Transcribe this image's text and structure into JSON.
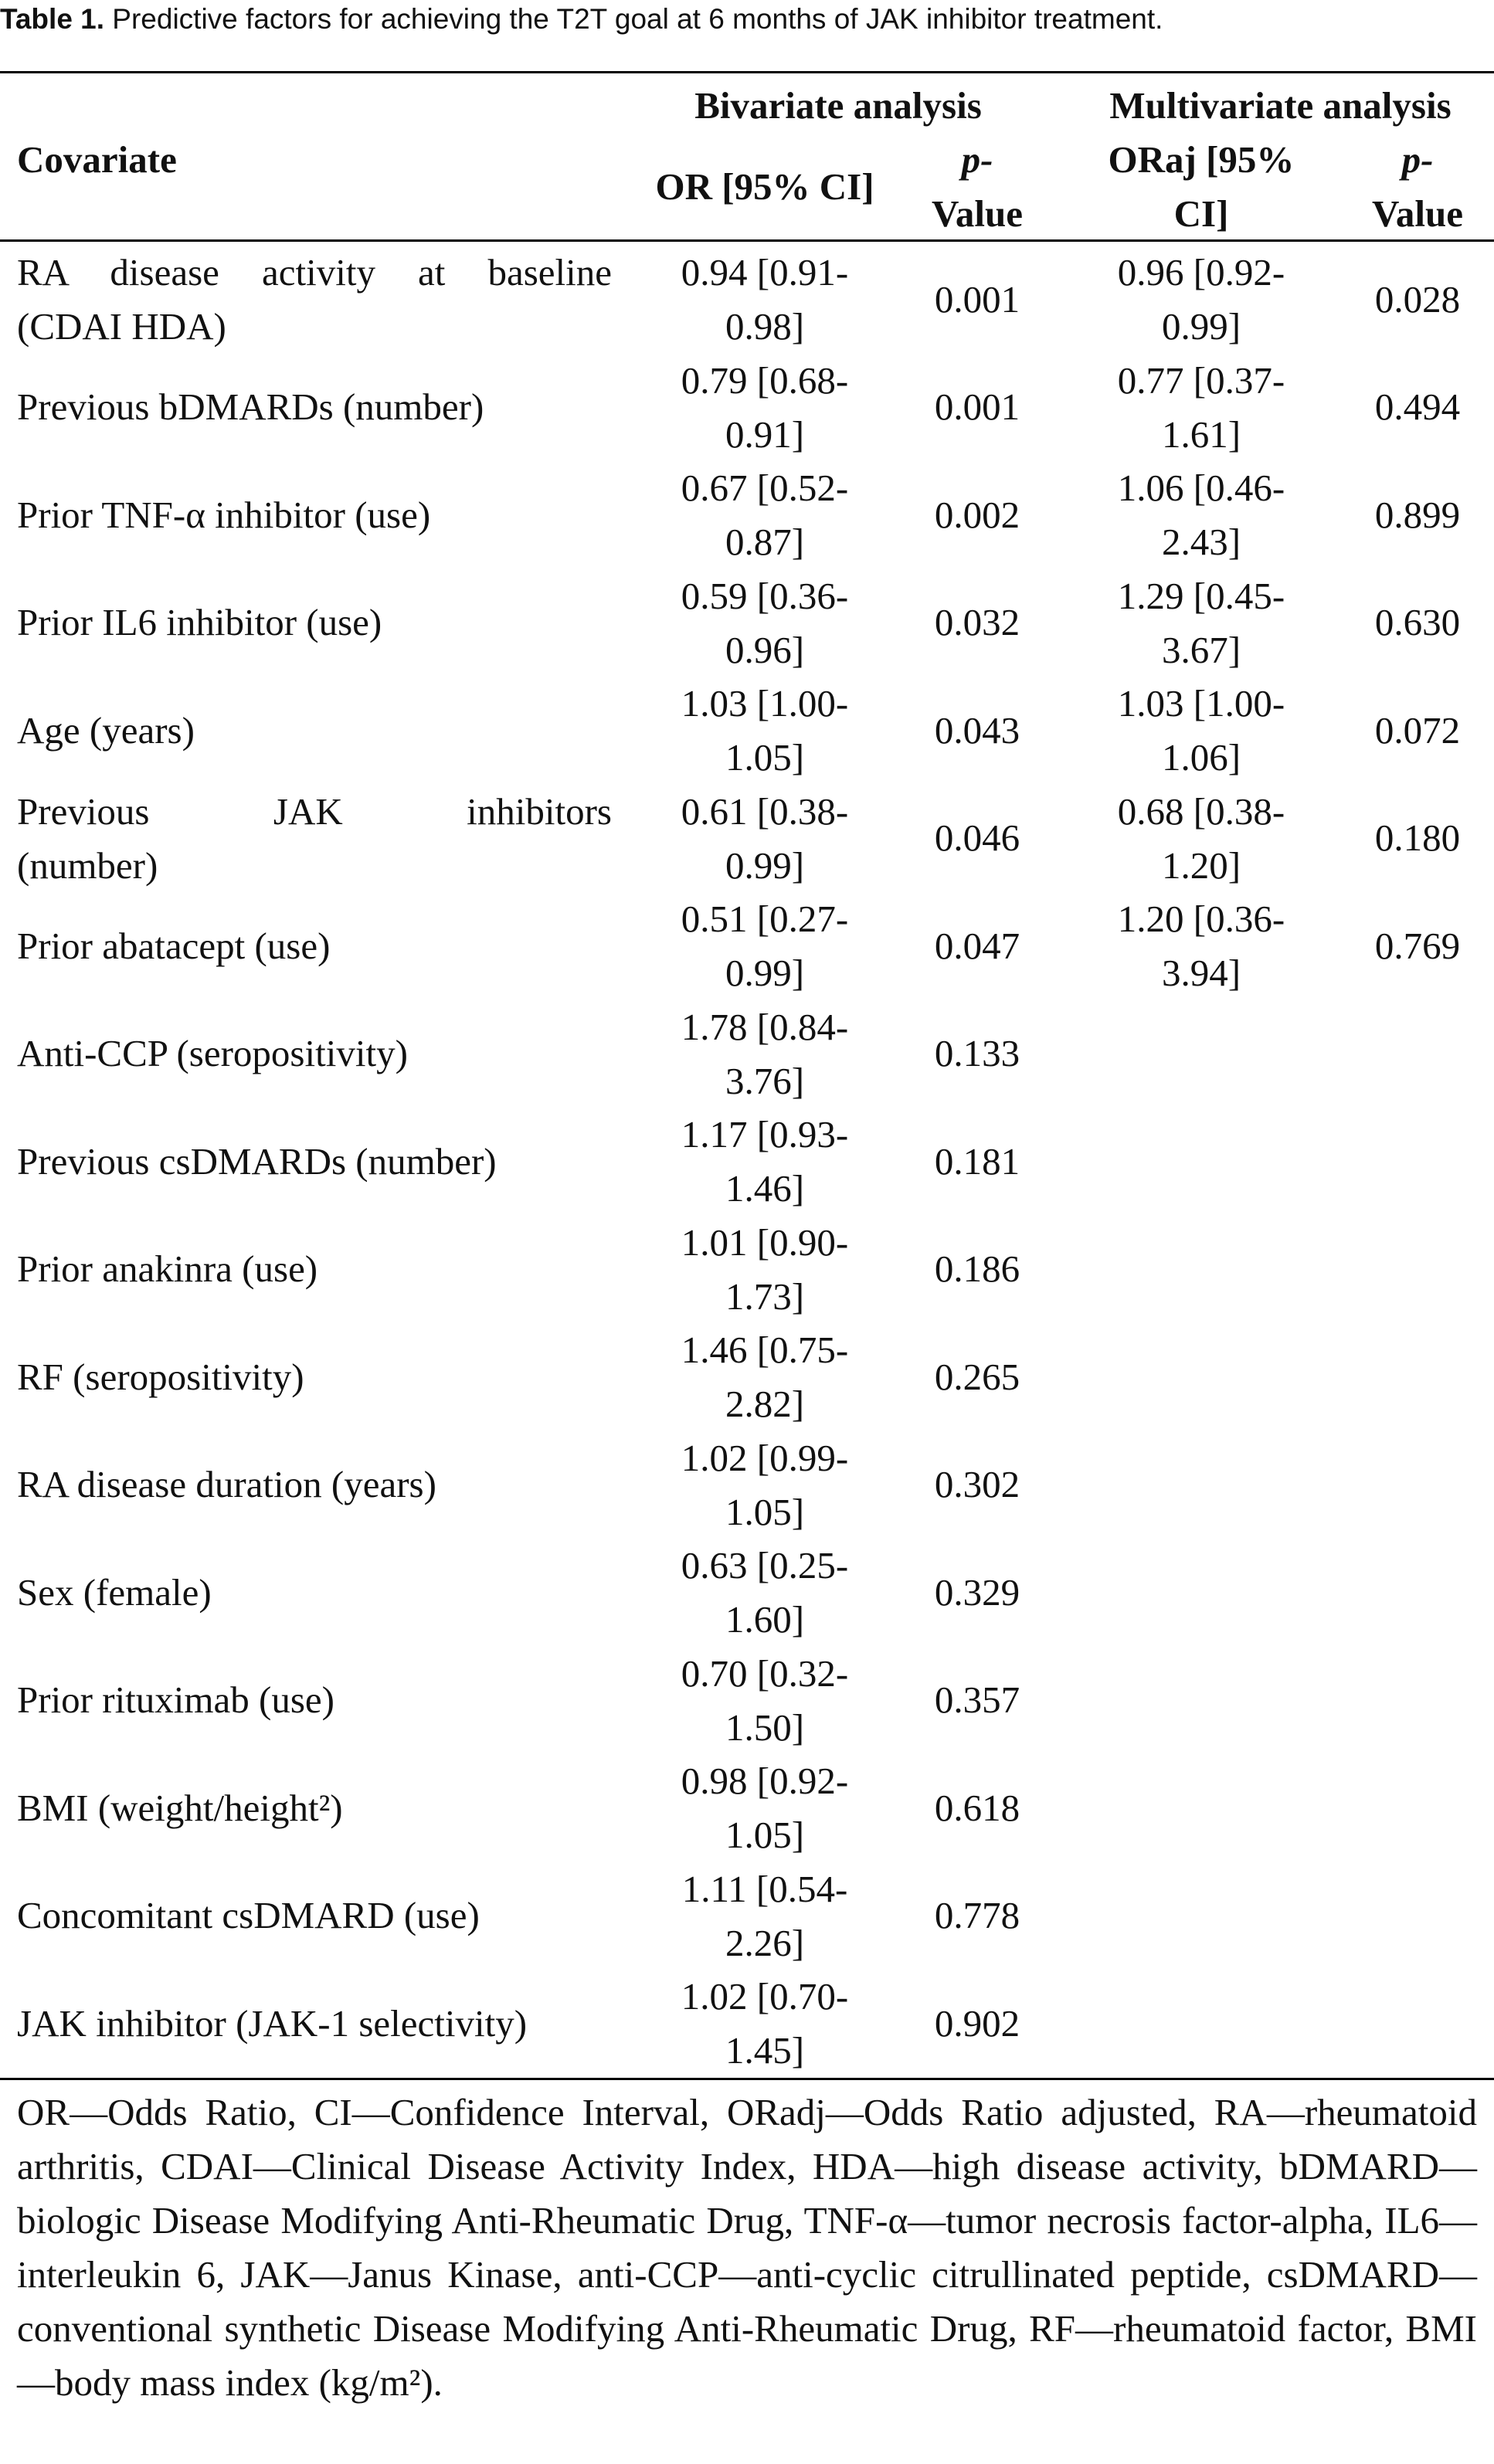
{
  "caption": {
    "label": "Table 1.",
    "text": " Predictive factors for achieving the T2T goal at 6 months of JAK inhibitor treatment."
  },
  "header": {
    "covariate": "Covariate",
    "bivariate": "Bivariate analysis",
    "multivariate": "Multivariate analysis",
    "or_ci": "OR [95% CI]",
    "p_value_1_line1": "p-",
    "p_value_1_line2": "Value",
    "oraj_line1": "ORaj [95%",
    "oraj_line2": "CI]",
    "p_value_2_line1": "p-",
    "p_value_2_line2": "Value"
  },
  "rows": [
    {
      "cov1": "RA disease activity at baseline",
      "cov2": "(CDAI HDA)",
      "or1": "0.94 [0.91-",
      "or2": "0.98]",
      "p1": "0.001",
      "ora1": "0.96 [0.92-",
      "ora2": "0.99]",
      "p2": "0.028"
    },
    {
      "cov1": "Previous bDMARDs (number)",
      "or1": "0.79 [0.68-",
      "or2": "0.91]",
      "p1": "0.001",
      "ora1": "0.77 [0.37-",
      "ora2": "1.61]",
      "p2": "0.494"
    },
    {
      "cov1": "Prior TNF-α inhibitor (use)",
      "or1": "0.67 [0.52-",
      "or2": "0.87]",
      "p1": "0.002",
      "ora1": "1.06 [0.46-",
      "ora2": "2.43]",
      "p2": "0.899"
    },
    {
      "cov1": "Prior IL6 inhibitor (use)",
      "or1": "0.59 [0.36-",
      "or2": "0.96]",
      "p1": "0.032",
      "ora1": "1.29 [0.45-",
      "ora2": "3.67]",
      "p2": "0.630"
    },
    {
      "cov1": "Age (years)",
      "or1": "1.03 [1.00-",
      "or2": "1.05]",
      "p1": "0.043",
      "ora1": "1.03 [1.00-",
      "ora2": "1.06]",
      "p2": "0.072"
    },
    {
      "cov1": "Previous JAK inhibitors",
      "cov2": "(number)",
      "or1": "0.61 [0.38-",
      "or2": "0.99]",
      "p1": "0.046",
      "ora1": "0.68 [0.38-",
      "ora2": "1.20]",
      "p2": "0.180"
    },
    {
      "cov1": "Prior abatacept (use)",
      "or1": "0.51 [0.27-",
      "or2": "0.99]",
      "p1": "0.047",
      "ora1": "1.20 [0.36-",
      "ora2": "3.94]",
      "p2": "0.769"
    },
    {
      "cov1": "Anti-CCP (seropositivity)",
      "or1": "1.78 [0.84-",
      "or2": "3.76]",
      "p1": "0.133"
    },
    {
      "cov1": "Previous csDMARDs (number)",
      "or1": "1.17 [0.93-",
      "or2": "1.46]",
      "p1": "0.181"
    },
    {
      "cov1": "Prior anakinra (use)",
      "or1": "1.01 [0.90-",
      "or2": "1.73]",
      "p1": "0.186"
    },
    {
      "cov1": "RF (seropositivity)",
      "or1": "1.46 [0.75-",
      "or2": "2.82]",
      "p1": "0.265"
    },
    {
      "cov1": "RA disease duration (years)",
      "or1": "1.02 [0.99-",
      "or2": "1.05]",
      "p1": "0.302"
    },
    {
      "cov1": "Sex (female)",
      "or1": "0.63 [0.25-",
      "or2": "1.60]",
      "p1": "0.329"
    },
    {
      "cov1": "Prior rituximab (use)",
      "or1": "0.70 [0.32-",
      "or2": "1.50]",
      "p1": "0.357"
    },
    {
      "cov1": "BMI (weight/height²)",
      "or1": "0.98 [0.92-",
      "or2": "1.05]",
      "p1": "0.618"
    },
    {
      "cov1": "Concomitant csDMARD (use)",
      "or1": "1.11 [0.54-",
      "or2": "2.26]",
      "p1": "0.778"
    },
    {
      "cov1": "JAK inhibitor (JAK-1 selectivity)",
      "or1": "1.02 [0.70-",
      "or2": "1.45]",
      "p1": "0.902"
    }
  ],
  "footnote": "OR—Odds Ratio, CI—Confidence Interval, ORadj—Odds Ratio adjusted, RA—rheumatoid arthritis, CDAI—Clinical Disease Activity Index, HDA—high disease activity, bDMARD—biologic Disease Modifying Anti-Rheumatic Drug, TNF-α—tumor necrosis factor-alpha, IL6—interleukin 6, JAK—Janus Kinase, anti-CCP—anti-cyclic citrullinated peptide, csDMARD—conventional synthetic Disease Modifying Anti-Rheumatic Drug, RF—rheumatoid factor, BMI—body mass index (kg/m²)."
}
